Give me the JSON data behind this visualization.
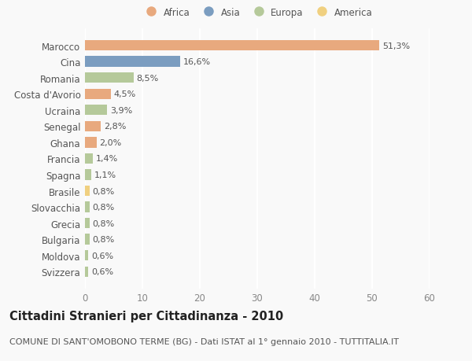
{
  "categories": [
    "Svizzera",
    "Moldova",
    "Bulgaria",
    "Grecia",
    "Slovacchia",
    "Brasile",
    "Spagna",
    "Francia",
    "Ghana",
    "Senegal",
    "Ucraina",
    "Costa d'Avorio",
    "Romania",
    "Cina",
    "Marocco"
  ],
  "values": [
    0.6,
    0.6,
    0.8,
    0.8,
    0.8,
    0.8,
    1.1,
    1.4,
    2.0,
    2.8,
    3.9,
    4.5,
    8.5,
    16.6,
    51.3
  ],
  "labels": [
    "0,6%",
    "0,6%",
    "0,8%",
    "0,8%",
    "0,8%",
    "0,8%",
    "1,1%",
    "1,4%",
    "2,0%",
    "2,8%",
    "3,9%",
    "4,5%",
    "8,5%",
    "16,6%",
    "51,3%"
  ],
  "continents": [
    "Europa",
    "Europa",
    "Europa",
    "Europa",
    "Europa",
    "America",
    "Europa",
    "Europa",
    "Africa",
    "Africa",
    "Europa",
    "Africa",
    "Europa",
    "Asia",
    "Africa"
  ],
  "colors": {
    "Africa": "#E8A97E",
    "Asia": "#7B9DC0",
    "Europa": "#B5C99A",
    "America": "#F0D080"
  },
  "xlim": [
    0,
    60
  ],
  "xticks": [
    0,
    10,
    20,
    30,
    40,
    50,
    60
  ],
  "title": "Cittadini Stranieri per Cittadinanza - 2010",
  "subtitle": "COMUNE DI SANT'OMOBONO TERME (BG) - Dati ISTAT al 1° gennaio 2010 - TUTTITALIA.IT",
  "background_color": "#f9f9f9",
  "grid_color": "#ffffff",
  "bar_height": 0.65,
  "title_fontsize": 10.5,
  "subtitle_fontsize": 8,
  "tick_fontsize": 8.5,
  "label_fontsize": 8,
  "legend_order": [
    "Africa",
    "Asia",
    "Europa",
    "America"
  ]
}
